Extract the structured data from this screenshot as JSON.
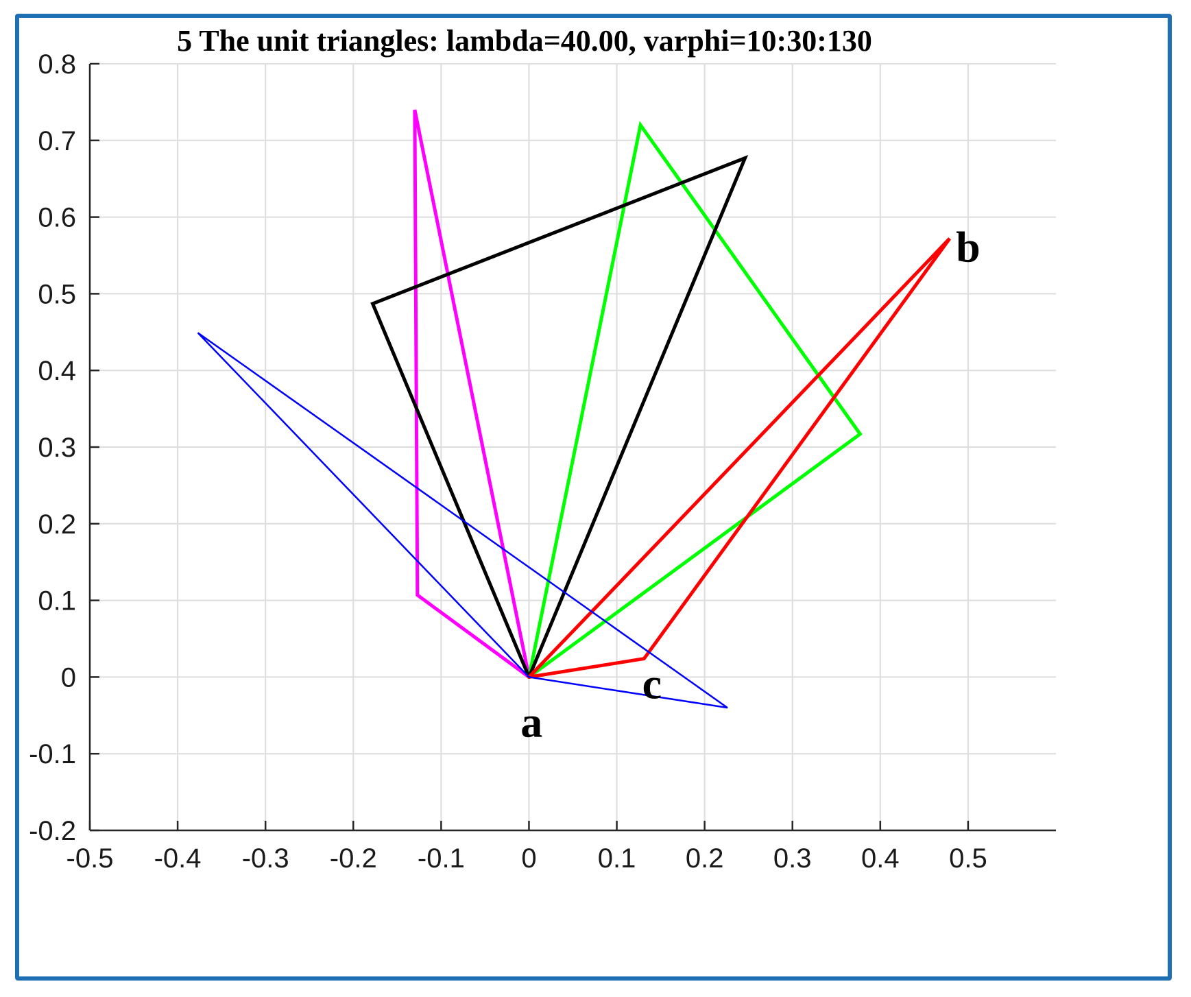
{
  "colors": {
    "frame": "#1f6fb4",
    "grid": "#dddddd",
    "axis": "#262626",
    "magenta": "#ff00ff",
    "green": "#00ff00",
    "black": "#000000",
    "red": "#ff0000",
    "blue": "#0000ff"
  },
  "chart_data": {
    "type": "line",
    "title": "5 The unit triangles: lambda=40.00, varphi=10:30:130",
    "xlabel": "",
    "ylabel": "",
    "xlim": [
      -0.5,
      0.6
    ],
    "ylim": [
      -0.2,
      0.8
    ],
    "grid": true,
    "xticks": [
      -0.5,
      -0.4,
      -0.3,
      -0.2,
      -0.1,
      0,
      0.1,
      0.2,
      0.3,
      0.4,
      0.5
    ],
    "xtick_labels": [
      "-0.5",
      "-0.4",
      "-0.3",
      "-0.2",
      "-0.1",
      "0",
      "0.1",
      "0.2",
      "0.3",
      "0.4",
      "0.5"
    ],
    "yticks": [
      -0.2,
      -0.1,
      0,
      0.1,
      0.2,
      0.3,
      0.4,
      0.5,
      0.6,
      0.7,
      0.8
    ],
    "ytick_labels": [
      "-0.2",
      "-0.1",
      "0",
      "0.1",
      "0.2",
      "0.3",
      "0.4",
      "0.5",
      "0.6",
      "0.7",
      "0.8"
    ],
    "series": [
      {
        "color": "#ff00ff",
        "width": 5,
        "points": [
          [
            0,
            0
          ],
          [
            -0.13,
            0.74
          ],
          [
            -0.127,
            0.107
          ],
          [
            0,
            0
          ]
        ]
      },
      {
        "color": "#00ff00",
        "width": 5,
        "points": [
          [
            0,
            0
          ],
          [
            0.127,
            0.72
          ],
          [
            0.377,
            0.317
          ],
          [
            0,
            0
          ]
        ]
      },
      {
        "color": "#000000",
        "width": 5,
        "points": [
          [
            0,
            0
          ],
          [
            0.246,
            0.677
          ],
          [
            -0.178,
            0.487
          ],
          [
            0,
            0
          ]
        ]
      },
      {
        "color": "#ff0000",
        "width": 5,
        "points": [
          [
            0,
            0
          ],
          [
            0.479,
            0.572
          ],
          [
            0.131,
            0.024
          ],
          [
            0,
            0
          ]
        ]
      },
      {
        "color": "#0000ff",
        "width": 2.5,
        "points": [
          [
            0,
            0
          ],
          [
            -0.377,
            0.449
          ],
          [
            0.226,
            -0.04
          ],
          [
            0,
            0
          ]
        ]
      }
    ],
    "annotations": [
      {
        "text": "a",
        "x": 0.003,
        "y": -0.06
      },
      {
        "text": "b",
        "x": 0.5,
        "y": 0.56
      },
      {
        "text": "c",
        "x": 0.14,
        "y": -0.01
      }
    ]
  }
}
